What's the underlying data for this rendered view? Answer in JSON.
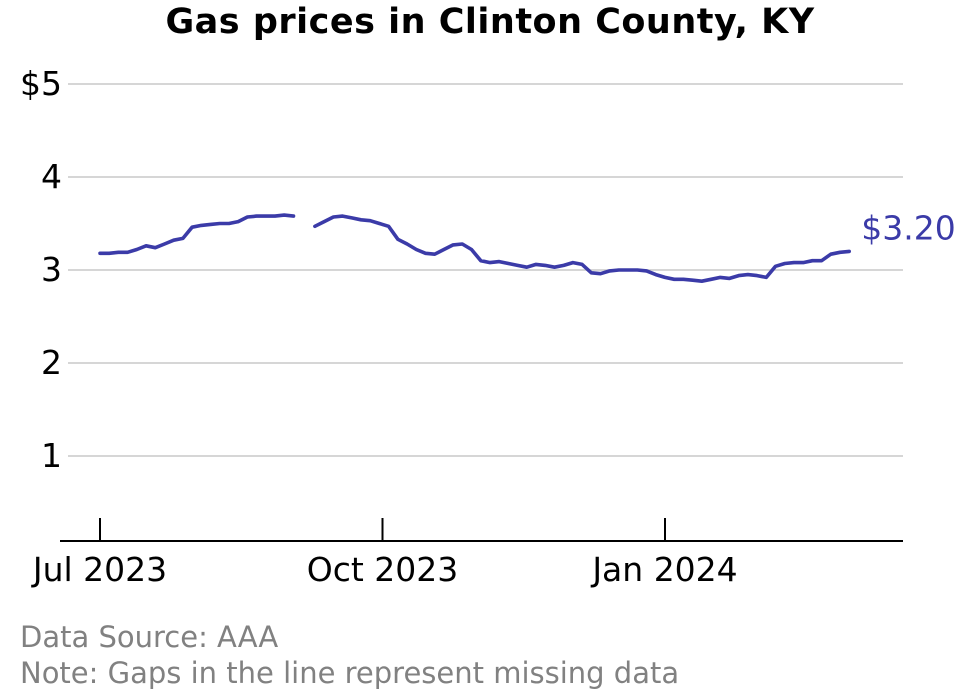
{
  "page": {
    "title": "Gas prices in Clinton County, KY",
    "source_note": "Data Source: AAA",
    "gap_note": "Note: Gaps in the line represent missing data"
  },
  "chart_data": {
    "type": "line",
    "title": "Gas prices in Clinton County, KY",
    "xlabel": "",
    "ylabel": "",
    "x_unit": "days since 2023-07-01",
    "line_color": "#3b3ba8",
    "grid_color": "#c9c9c9",
    "axis_color": "#000000",
    "label_color": "#000000",
    "y_ticks": [
      {
        "label": "$5",
        "value": 5
      },
      {
        "label": "4",
        "value": 4
      },
      {
        "label": "3",
        "value": 3
      },
      {
        "label": "2",
        "value": 2
      },
      {
        "label": "1",
        "value": 1
      }
    ],
    "x_ticks": [
      {
        "label": "Jul 2023",
        "day": 0
      },
      {
        "label": "Oct 2023",
        "day": 92
      },
      {
        "label": "Jan 2024",
        "day": 184
      }
    ],
    "annotation": {
      "text": "$3.20",
      "value": 3.2
    },
    "legend": null,
    "grid": "horizontal",
    "x": [
      0,
      3,
      6,
      9,
      12,
      15,
      18,
      21,
      24,
      27,
      30,
      33,
      36,
      39,
      42,
      45,
      48,
      51,
      54,
      57,
      60,
      63,
      66,
      70,
      73,
      76,
      79,
      82,
      85,
      88,
      91,
      94,
      97,
      100,
      103,
      106,
      109,
      112,
      115,
      118,
      121,
      124,
      127,
      130,
      133,
      136,
      139,
      142,
      145,
      148,
      151,
      154,
      157,
      160,
      163,
      166,
      169,
      172,
      175,
      178,
      181,
      184,
      187,
      190,
      193,
      196,
      199,
      202,
      205,
      208,
      211,
      214,
      217,
      220,
      223,
      226,
      229,
      232,
      235,
      238,
      241,
      244
    ],
    "y": [
      3.18,
      3.18,
      3.19,
      3.19,
      3.22,
      3.26,
      3.24,
      3.28,
      3.32,
      3.34,
      3.46,
      3.48,
      3.49,
      3.5,
      3.5,
      3.52,
      3.57,
      3.58,
      3.58,
      3.58,
      3.59,
      3.58,
      null,
      3.47,
      3.52,
      3.57,
      3.58,
      3.56,
      3.54,
      3.53,
      3.5,
      3.47,
      3.33,
      3.28,
      3.22,
      3.18,
      3.17,
      3.22,
      3.27,
      3.28,
      3.22,
      3.1,
      3.08,
      3.09,
      3.07,
      3.05,
      3.03,
      3.06,
      3.05,
      3.03,
      3.05,
      3.08,
      3.06,
      2.97,
      2.96,
      2.99,
      3.0,
      3.0,
      3.0,
      2.99,
      2.95,
      2.92,
      2.9,
      2.9,
      2.89,
      2.88,
      2.9,
      2.92,
      2.91,
      2.94,
      2.95,
      2.94,
      2.92,
      3.04,
      3.07,
      3.08,
      3.08,
      3.1,
      3.1,
      3.17,
      3.19,
      3.2
    ]
  }
}
